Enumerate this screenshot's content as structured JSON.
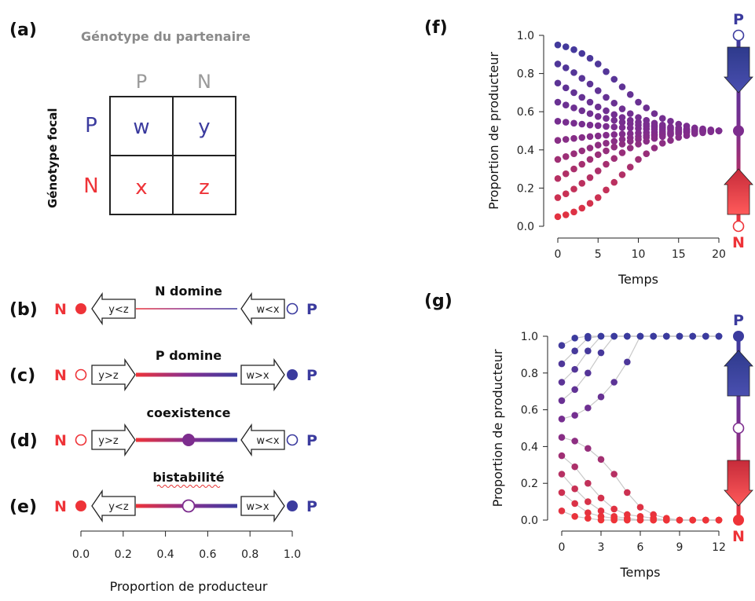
{
  "colors": {
    "blue": "#3b3b9e",
    "purple": "#7d2d8e",
    "red": "#ee3338",
    "black": "#111111",
    "gray": "#8a8a8a",
    "connector": "#c8c8c8"
  },
  "panel_a": {
    "label": "(a)",
    "title": "Génotype du partenaire",
    "side_label": "Génotype focal",
    "col_headers": [
      "P",
      "N"
    ],
    "row_headers": [
      "P",
      "N"
    ],
    "cells": [
      [
        "w",
        "y"
      ],
      [
        "x",
        "z"
      ]
    ]
  },
  "panels_line": [
    {
      "label": "(b)",
      "title": "N domine",
      "title_underline": false,
      "left_end": "N",
      "right_end": "P",
      "left_state": "filled",
      "right_state": "open",
      "left_arrow": "y<z",
      "left_arrow_dir": "left",
      "right_arrow": "w<x",
      "right_arrow_dir": "left",
      "mid_marker": "none",
      "bar": "thin"
    },
    {
      "label": "(c)",
      "title": "P domine",
      "title_underline": false,
      "left_end": "N",
      "right_end": "P",
      "left_state": "open",
      "right_state": "filled",
      "left_arrow": "y>z",
      "left_arrow_dir": "right",
      "right_arrow": "w>x",
      "right_arrow_dir": "right",
      "mid_marker": "none",
      "bar": "thick"
    },
    {
      "label": "(d)",
      "title": "coexistence",
      "title_underline": false,
      "left_end": "N",
      "right_end": "P",
      "left_state": "open",
      "right_state": "open",
      "left_arrow": "y>z",
      "left_arrow_dir": "right",
      "right_arrow": "w<x",
      "right_arrow_dir": "left",
      "mid_marker": "filled",
      "bar": "thick"
    },
    {
      "label": "(e)",
      "title": "bistabilité",
      "title_underline": true,
      "left_end": "N",
      "right_end": "P",
      "left_state": "filled",
      "right_state": "filled",
      "left_arrow": "y<z",
      "left_arrow_dir": "left",
      "right_arrow": "w>x",
      "right_arrow_dir": "right",
      "mid_marker": "open",
      "bar": "thick"
    }
  ],
  "panel_axis": {
    "ticks": [
      "0.0",
      "0.2",
      "0.4",
      "0.6",
      "0.8",
      "1.0"
    ],
    "xlabel": "Proportion de producteur"
  },
  "chart_data": [
    {
      "type": "scatter",
      "panel": "(f)",
      "ylabel": "Proportion de producteur",
      "xlabel": "Temps",
      "xlim": [
        0,
        20
      ],
      "ylim": [
        0,
        1
      ],
      "xticks": [
        "0",
        "5",
        "10",
        "15",
        "20"
      ],
      "yticks": [
        "0.0",
        "0.2",
        "0.4",
        "0.6",
        "0.8",
        "1.0"
      ],
      "grid": false,
      "connected": false,
      "x": [
        0,
        1,
        2,
        3,
        4,
        5,
        6,
        7,
        8,
        9,
        10,
        11,
        12,
        13,
        14,
        15,
        16,
        17,
        18,
        19,
        20
      ],
      "series": [
        {
          "values": [
            0.95,
            0.94,
            0.925,
            0.905,
            0.88,
            0.85,
            0.81,
            0.77,
            0.73,
            0.69,
            0.65,
            0.62,
            0.59,
            0.565,
            0.55,
            0.535,
            0.525,
            0.515,
            0.51,
            0.505,
            0.5
          ]
        },
        {
          "values": [
            0.85,
            0.83,
            0.805,
            0.775,
            0.745,
            0.71,
            0.675,
            0.645,
            0.615,
            0.59,
            0.57,
            0.555,
            0.54,
            0.53,
            0.52,
            0.515,
            0.51,
            0.505,
            0.503,
            0.501,
            0.5
          ]
        },
        {
          "values": [
            0.75,
            0.725,
            0.7,
            0.675,
            0.65,
            0.625,
            0.605,
            0.585,
            0.57,
            0.555,
            0.545,
            0.535,
            0.527,
            0.52,
            0.515,
            0.51,
            0.506,
            0.503,
            0.502,
            0.501,
            0.5
          ]
        },
        {
          "values": [
            0.65,
            0.635,
            0.62,
            0.605,
            0.59,
            0.575,
            0.565,
            0.555,
            0.545,
            0.537,
            0.53,
            0.524,
            0.519,
            0.515,
            0.511,
            0.508,
            0.506,
            0.504,
            0.502,
            0.501,
            0.5
          ]
        },
        {
          "values": [
            0.55,
            0.545,
            0.54,
            0.535,
            0.53,
            0.527,
            0.523,
            0.52,
            0.517,
            0.515,
            0.512,
            0.51,
            0.508,
            0.506,
            0.505,
            0.504,
            0.503,
            0.502,
            0.501,
            0.5,
            0.5
          ]
        },
        {
          "values": [
            0.45,
            0.455,
            0.46,
            0.465,
            0.47,
            0.473,
            0.477,
            0.48,
            0.483,
            0.485,
            0.488,
            0.49,
            0.492,
            0.494,
            0.495,
            0.496,
            0.497,
            0.498,
            0.499,
            0.5,
            0.5
          ]
        },
        {
          "values": [
            0.35,
            0.365,
            0.38,
            0.395,
            0.41,
            0.425,
            0.435,
            0.445,
            0.455,
            0.463,
            0.47,
            0.476,
            0.481,
            0.485,
            0.489,
            0.492,
            0.494,
            0.496,
            0.498,
            0.499,
            0.5
          ]
        },
        {
          "values": [
            0.25,
            0.275,
            0.3,
            0.325,
            0.35,
            0.375,
            0.395,
            0.415,
            0.43,
            0.445,
            0.455,
            0.465,
            0.473,
            0.48,
            0.485,
            0.49,
            0.494,
            0.497,
            0.498,
            0.499,
            0.5
          ]
        },
        {
          "values": [
            0.15,
            0.17,
            0.195,
            0.225,
            0.255,
            0.29,
            0.325,
            0.355,
            0.385,
            0.41,
            0.43,
            0.445,
            0.46,
            0.47,
            0.48,
            0.485,
            0.49,
            0.495,
            0.497,
            0.499,
            0.5
          ]
        },
        {
          "values": [
            0.05,
            0.06,
            0.075,
            0.095,
            0.12,
            0.15,
            0.19,
            0.23,
            0.27,
            0.31,
            0.35,
            0.38,
            0.41,
            0.435,
            0.45,
            0.465,
            0.475,
            0.485,
            0.49,
            0.495,
            0.5
          ]
        }
      ],
      "side_top": "P",
      "side_bottom": "N",
      "side_top_state": "open",
      "side_mid_state": "filled",
      "side_bottom_state": "open",
      "side_arrows": "inward"
    },
    {
      "type": "scatter",
      "panel": "(g)",
      "ylabel": "Proportion de producteur",
      "xlabel": "Temps",
      "xlim": [
        0,
        12
      ],
      "ylim": [
        0,
        1
      ],
      "xticks": [
        "0",
        "3",
        "6",
        "9",
        "12"
      ],
      "yticks": [
        "0.0",
        "0.2",
        "0.4",
        "0.6",
        "0.8",
        "1.0"
      ],
      "grid": false,
      "connected": true,
      "x": [
        0,
        1,
        2,
        3,
        4,
        5,
        6,
        7,
        8,
        9,
        10,
        11,
        12
      ],
      "series": [
        {
          "values": [
            0.95,
            0.99,
            1.0,
            1.0,
            1.0,
            1.0,
            1.0,
            1.0,
            1.0,
            1.0,
            1.0,
            1.0,
            1.0
          ]
        },
        {
          "values": [
            0.85,
            0.92,
            0.99,
            1.0,
            1.0,
            1.0,
            1.0,
            1.0,
            1.0,
            1.0,
            1.0,
            1.0,
            1.0
          ]
        },
        {
          "values": [
            0.75,
            0.82,
            0.92,
            1.0,
            1.0,
            1.0,
            1.0,
            1.0,
            1.0,
            1.0,
            1.0,
            1.0,
            1.0
          ]
        },
        {
          "values": [
            0.65,
            0.71,
            0.8,
            0.91,
            1.0,
            1.0,
            1.0,
            1.0,
            1.0,
            1.0,
            1.0,
            1.0,
            1.0
          ]
        },
        {
          "values": [
            0.55,
            0.57,
            0.61,
            0.67,
            0.75,
            0.86,
            1.0,
            1.0,
            1.0,
            1.0,
            1.0,
            1.0,
            1.0
          ]
        },
        {
          "values": [
            0.45,
            0.43,
            0.39,
            0.33,
            0.25,
            0.15,
            0.07,
            0.03,
            0.01,
            0.0,
            0.0,
            0.0,
            0.0
          ]
        },
        {
          "values": [
            0.35,
            0.29,
            0.2,
            0.12,
            0.06,
            0.03,
            0.02,
            0.01,
            0.0,
            0.0,
            0.0,
            0.0,
            0.0
          ]
        },
        {
          "values": [
            0.25,
            0.17,
            0.1,
            0.05,
            0.02,
            0.01,
            0.0,
            0.0,
            0.0,
            0.0,
            0.0,
            0.0,
            0.0
          ]
        },
        {
          "values": [
            0.15,
            0.09,
            0.04,
            0.02,
            0.01,
            0.0,
            0.0,
            0.0,
            0.0,
            0.0,
            0.0,
            0.0,
            0.0
          ]
        },
        {
          "values": [
            0.05,
            0.02,
            0.01,
            0.0,
            0.0,
            0.0,
            0.0,
            0.0,
            0.0,
            0.0,
            0.0,
            0.0,
            0.0
          ]
        }
      ],
      "side_top": "P",
      "side_bottom": "N",
      "side_top_state": "filled",
      "side_mid_state": "open",
      "side_bottom_state": "filled",
      "side_arrows": "outward"
    }
  ]
}
